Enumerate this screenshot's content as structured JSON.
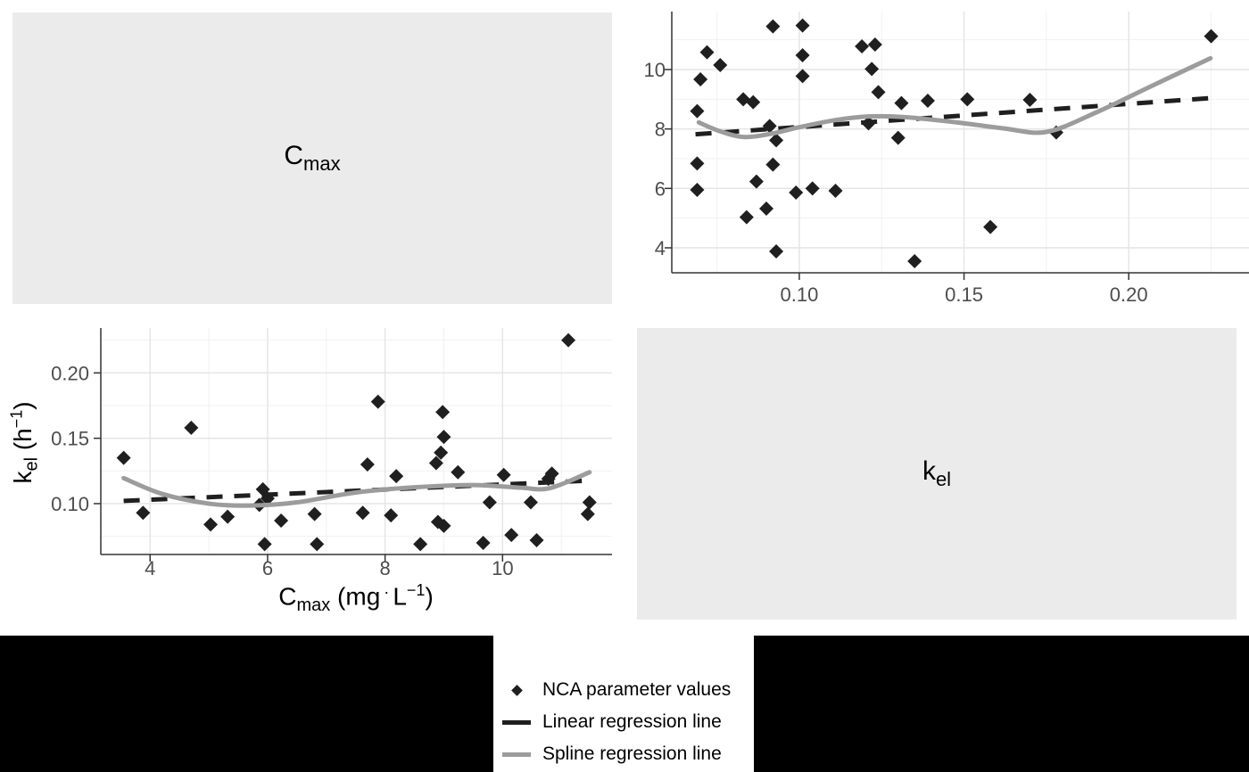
{
  "palette": {
    "panel_label_bg": "#ebebeb",
    "point_color": "#1f1f1f",
    "linear_color": "#1f1f1f",
    "spline_color": "#9c9c9c",
    "grid_major": "#e4e4e4",
    "grid_minor": "#f1f1f1",
    "axis_line": "#333333",
    "tick_label": "#4d4d4d",
    "band_bg": "#000000",
    "legend_bg": "#ffffff"
  },
  "matrix_labels": {
    "top_left": {
      "base": "C",
      "sub": "max"
    },
    "bottom_right": {
      "base": "k",
      "sub": "el"
    }
  },
  "axis_titles": {
    "x": {
      "base": "C",
      "sub": "max",
      "unit_open": " (mg",
      "dot": "·",
      "unit_l": "L",
      "sup": "−1",
      "close": ")"
    },
    "y": {
      "base": "k",
      "sub": "el",
      "unit_open": " (h",
      "sup": "−1",
      "close": ")"
    }
  },
  "chart_data": {
    "type": "scatter",
    "title": "",
    "points_cmax_kel": [
      [
        3.55,
        0.135
      ],
      [
        3.88,
        0.093
      ],
      [
        4.7,
        0.158
      ],
      [
        5.03,
        0.084
      ],
      [
        5.32,
        0.09
      ],
      [
        5.86,
        0.099
      ],
      [
        5.92,
        0.111
      ],
      [
        5.95,
        0.069
      ],
      [
        6.0,
        0.104
      ],
      [
        6.23,
        0.087
      ],
      [
        6.8,
        0.092
      ],
      [
        6.84,
        0.069
      ],
      [
        7.62,
        0.093
      ],
      [
        7.7,
        0.13
      ],
      [
        7.88,
        0.178
      ],
      [
        8.1,
        0.091
      ],
      [
        8.19,
        0.121
      ],
      [
        8.6,
        0.069
      ],
      [
        8.87,
        0.131
      ],
      [
        8.9,
        0.086
      ],
      [
        8.95,
        0.139
      ],
      [
        8.98,
        0.17
      ],
      [
        9.0,
        0.083
      ],
      [
        9.0,
        0.151
      ],
      [
        9.24,
        0.124
      ],
      [
        9.67,
        0.07
      ],
      [
        9.78,
        0.101
      ],
      [
        10.02,
        0.122
      ],
      [
        10.15,
        0.076
      ],
      [
        10.48,
        0.101
      ],
      [
        10.58,
        0.072
      ],
      [
        10.78,
        0.119
      ],
      [
        10.84,
        0.123
      ],
      [
        11.12,
        0.225
      ],
      [
        11.45,
        0.092
      ],
      [
        11.48,
        0.101
      ]
    ],
    "panels": [
      {
        "name": "cmax-vs-kel-top-right",
        "x_var": "kel",
        "y_var": "cmax",
        "x_index": 1,
        "y_index": 0,
        "xlim": [
          0.0613,
          0.2365
        ],
        "ylim": [
          3.16,
          11.95
        ],
        "x_ticks": {
          "values": [
            0.1,
            0.15,
            0.2
          ],
          "labels": [
            "0.10",
            "0.15",
            "0.20"
          ]
        },
        "y_ticks": {
          "values": [
            4,
            6,
            8,
            10
          ],
          "labels": [
            "4",
            "6",
            "8",
            "10"
          ]
        },
        "x_minor": [
          0.075,
          0.125,
          0.175,
          0.225
        ],
        "y_minor": [
          5,
          7,
          9,
          11
        ],
        "linear_fit": [
          [
            0.0685,
            7.82
          ],
          [
            0.225,
            9.04
          ]
        ],
        "spline_fit": [
          [
            0.0695,
            8.22
          ],
          [
            0.076,
            7.92
          ],
          [
            0.083,
            7.73
          ],
          [
            0.091,
            7.83
          ],
          [
            0.1,
            8.06
          ],
          [
            0.111,
            8.3
          ],
          [
            0.121,
            8.42
          ],
          [
            0.132,
            8.4
          ],
          [
            0.148,
            8.22
          ],
          [
            0.162,
            8.02
          ],
          [
            0.175,
            7.9
          ],
          [
            0.19,
            8.55
          ],
          [
            0.207,
            9.45
          ],
          [
            0.2248,
            10.38
          ]
        ]
      },
      {
        "name": "kel-vs-cmax-bottom-left",
        "x_var": "cmax",
        "y_var": "kel",
        "x_index": 0,
        "y_index": 1,
        "xlim": [
          3.161,
          11.863
        ],
        "ylim": [
          0.0611,
          0.2343
        ],
        "x_ticks": {
          "values": [
            4,
            6,
            8,
            10
          ],
          "labels": [
            "4",
            "6",
            "8",
            "10"
          ]
        },
        "y_ticks": {
          "values": [
            0.1,
            0.15,
            0.2
          ],
          "labels": [
            "0.10",
            "0.15",
            "0.20"
          ]
        },
        "x_minor": [
          5,
          7,
          9,
          11
        ],
        "y_minor": [
          0.075,
          0.125,
          0.175,
          0.225
        ],
        "linear_fit": [
          [
            3.55,
            0.1021
          ],
          [
            11.48,
            0.1176
          ]
        ],
        "spline_fit": [
          [
            3.55,
            0.1195
          ],
          [
            4.2,
            0.1075
          ],
          [
            5.0,
            0.1
          ],
          [
            5.7,
            0.0985
          ],
          [
            6.5,
            0.101
          ],
          [
            7.5,
            0.1085
          ],
          [
            8.5,
            0.1125
          ],
          [
            9.5,
            0.1142
          ],
          [
            10.3,
            0.1122
          ],
          [
            10.8,
            0.1118
          ],
          [
            11.48,
            0.124
          ]
        ]
      }
    ],
    "legend": {
      "items": [
        {
          "key": "diamond",
          "label": "NCA parameter values"
        },
        {
          "key": "dash-dark",
          "label": "Linear regression line"
        },
        {
          "key": "dash-gray",
          "label": "Spline regression line"
        }
      ],
      "position": "bottom-center"
    }
  }
}
